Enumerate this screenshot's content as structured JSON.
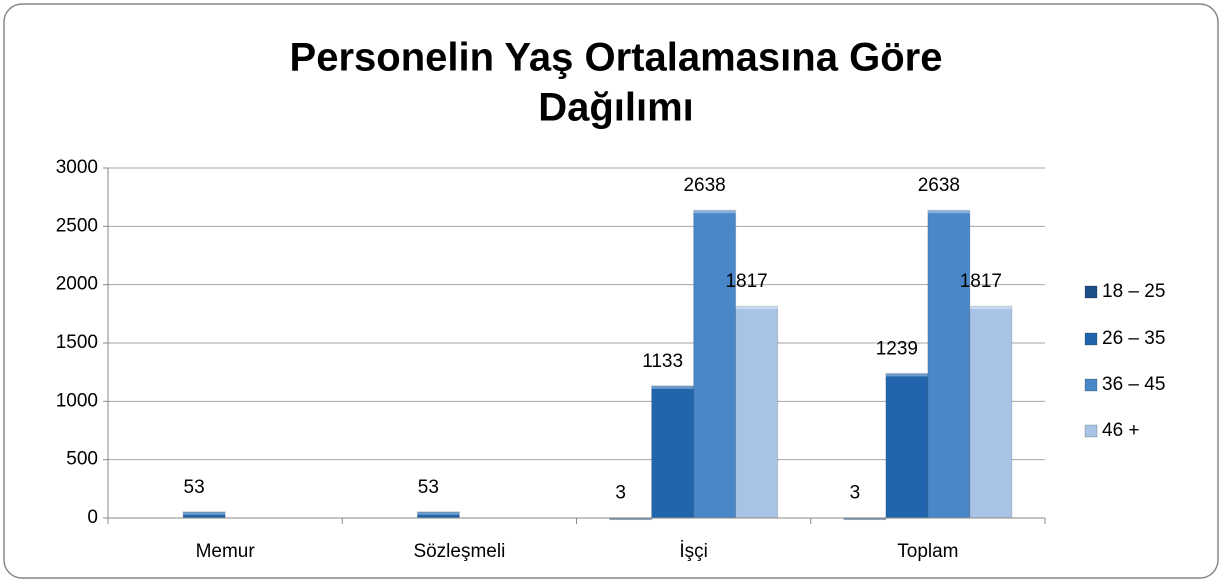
{
  "chart_data": {
    "type": "bar",
    "title": [
      "Personelin Yaş Ortalamasına Göre",
      "Dağılımı"
    ],
    "categories": [
      "Memur",
      "Sözleşmeli",
      "İşçi",
      "Toplam"
    ],
    "series": [
      {
        "name": "18 – 25",
        "color": "#1b4f86",
        "values": [
          null,
          null,
          3,
          3
        ]
      },
      {
        "name": "26 – 35",
        "color": "#2166ad",
        "values": [
          53,
          53,
          1133,
          1239
        ]
      },
      {
        "name": "36 – 45",
        "color": "#4a87c9",
        "values": [
          null,
          null,
          2638,
          2638
        ]
      },
      {
        "name": "46 +",
        "color": "#a9c3e6",
        "values": [
          null,
          null,
          1817,
          1817
        ]
      }
    ],
    "ylim": [
      0,
      3000
    ],
    "yticks": [
      0,
      500,
      1000,
      1500,
      2000,
      2500,
      3000
    ],
    "grid": true,
    "legend": "right"
  }
}
